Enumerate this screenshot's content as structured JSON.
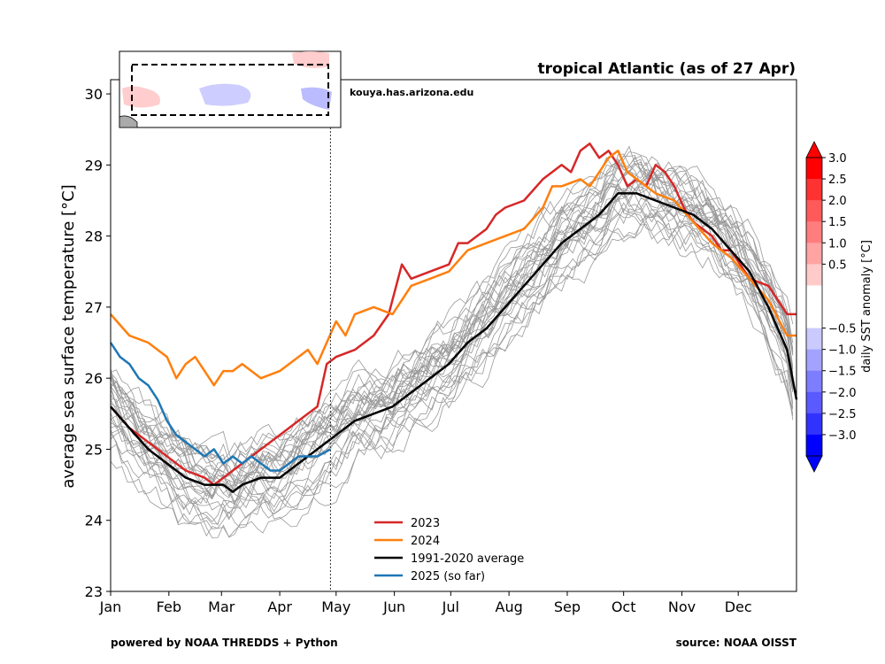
{
  "chart_data": {
    "type": "line",
    "title": "tropical Atlantic (as of 27 Apr)",
    "ylabel": "average sea surface temperature [°C]",
    "xlabel": "",
    "ylim": [
      23,
      30.2
    ],
    "y_ticks": [
      23,
      24,
      25,
      26,
      27,
      28,
      29,
      30
    ],
    "x_range_days": [
      0,
      365
    ],
    "month_labels": [
      "Jan",
      "Feb",
      "Mar",
      "Apr",
      "May",
      "Jun",
      "Jul",
      "Aug",
      "Sep",
      "Oct",
      "Nov",
      "Dec"
    ],
    "month_start_days": [
      0,
      31,
      59,
      90,
      120,
      151,
      181,
      212,
      243,
      273,
      304,
      334
    ],
    "current_day": 117,
    "watermark": "kouya.has.arizona.edu",
    "footer_left": "powered by NOAA THREDDS + Python",
    "footer_right": "source: NOAA OISST",
    "legend_position": "lower-center",
    "highlighted_series": [
      {
        "name": "2023",
        "color": "#d62728",
        "x": [
          0,
          10,
          20,
          30,
          40,
          50,
          55,
          60,
          70,
          80,
          90,
          100,
          110,
          115,
          120,
          130,
          140,
          148,
          155,
          160,
          170,
          180,
          185,
          190,
          200,
          205,
          210,
          220,
          230,
          240,
          245,
          250,
          255,
          260,
          265,
          270,
          275,
          280,
          285,
          290,
          295,
          300,
          305,
          310,
          320,
          325,
          330,
          340,
          350,
          360,
          365
        ],
        "y": [
          25.6,
          25.3,
          25.1,
          24.9,
          24.7,
          24.6,
          24.5,
          24.6,
          24.8,
          25.0,
          25.2,
          25.4,
          25.6,
          26.2,
          26.3,
          26.4,
          26.6,
          26.9,
          27.6,
          27.4,
          27.5,
          27.6,
          27.9,
          27.9,
          28.1,
          28.3,
          28.4,
          28.5,
          28.8,
          29.0,
          28.9,
          29.2,
          29.3,
          29.1,
          29.2,
          29.0,
          28.7,
          28.8,
          28.7,
          29.0,
          28.9,
          28.7,
          28.4,
          28.2,
          28.0,
          27.8,
          27.8,
          27.4,
          27.3,
          26.9,
          26.9
        ]
      },
      {
        "name": "2024",
        "color": "#ff7f0e",
        "x": [
          0,
          10,
          20,
          25,
          30,
          35,
          40,
          45,
          50,
          55,
          60,
          65,
          70,
          80,
          90,
          100,
          105,
          110,
          115,
          120,
          125,
          130,
          140,
          150,
          155,
          160,
          170,
          180,
          190,
          200,
          210,
          220,
          230,
          235,
          240,
          250,
          255,
          260,
          265,
          270,
          275,
          280,
          285,
          290,
          300,
          310,
          320,
          330,
          340,
          350,
          360,
          365
        ],
        "y": [
          26.9,
          26.6,
          26.5,
          26.4,
          26.3,
          26.0,
          26.2,
          26.3,
          26.1,
          25.9,
          26.1,
          26.1,
          26.2,
          26.0,
          26.1,
          26.3,
          26.4,
          26.2,
          26.5,
          26.8,
          26.6,
          26.9,
          27.0,
          26.9,
          27.1,
          27.3,
          27.4,
          27.5,
          27.8,
          27.9,
          28.0,
          28.1,
          28.4,
          28.7,
          28.7,
          28.8,
          28.7,
          28.9,
          29.1,
          29.2,
          28.9,
          28.8,
          28.7,
          28.6,
          28.5,
          28.2,
          27.9,
          27.7,
          27.4,
          27.1,
          26.6,
          26.6
        ]
      },
      {
        "name": "1991-2020 average",
        "color": "#000000",
        "x": [
          0,
          10,
          20,
          30,
          40,
          50,
          55,
          60,
          65,
          70,
          80,
          90,
          100,
          110,
          120,
          130,
          140,
          150,
          160,
          170,
          180,
          190,
          200,
          210,
          220,
          230,
          240,
          250,
          260,
          270,
          280,
          290,
          300,
          310,
          320,
          330,
          340,
          350,
          360,
          365
        ],
        "y": [
          25.6,
          25.3,
          25.0,
          24.8,
          24.6,
          24.5,
          24.5,
          24.5,
          24.4,
          24.5,
          24.6,
          24.6,
          24.8,
          25.0,
          25.2,
          25.4,
          25.5,
          25.6,
          25.8,
          26.0,
          26.2,
          26.5,
          26.7,
          27.0,
          27.3,
          27.6,
          27.9,
          28.1,
          28.3,
          28.6,
          28.6,
          28.5,
          28.4,
          28.3,
          28.1,
          27.8,
          27.5,
          27.0,
          26.4,
          25.7
        ]
      },
      {
        "name": "2025 (so far)",
        "color": "#1f77b4",
        "x": [
          0,
          5,
          10,
          15,
          20,
          25,
          30,
          35,
          40,
          45,
          50,
          55,
          60,
          65,
          70,
          75,
          80,
          85,
          90,
          95,
          100,
          105,
          110,
          117
        ],
        "y": [
          26.5,
          26.3,
          26.2,
          26.0,
          25.9,
          25.7,
          25.4,
          25.2,
          25.1,
          25.0,
          24.9,
          25.0,
          24.8,
          24.9,
          24.8,
          24.9,
          24.8,
          24.7,
          24.7,
          24.8,
          24.9,
          24.9,
          24.9,
          25.0
        ]
      }
    ],
    "background_series_note": "thin grey lines = individual years of the historical record (approximate spread around average)",
    "colorbar": {
      "label": "daily SST anomaly [°C]",
      "ticks": [
        "3.0",
        "2.5",
        "2.0",
        "1.5",
        "1.0",
        "0.5",
        "−0.5",
        "−1.0",
        "−1.5",
        "−2.0",
        "−2.5",
        "−3.0"
      ],
      "range": [
        -3.0,
        3.0
      ],
      "colors_top_to_bottom": [
        "#ff0000",
        "#ff3232",
        "#ff5a5a",
        "#ff7d7d",
        "#ffa3a3",
        "#ffcaca",
        "#ffffff",
        "#ffffff",
        "#cacaff",
        "#a3a3ff",
        "#7d7dff",
        "#5a5aff",
        "#3232ff",
        "#0000ff"
      ]
    }
  }
}
